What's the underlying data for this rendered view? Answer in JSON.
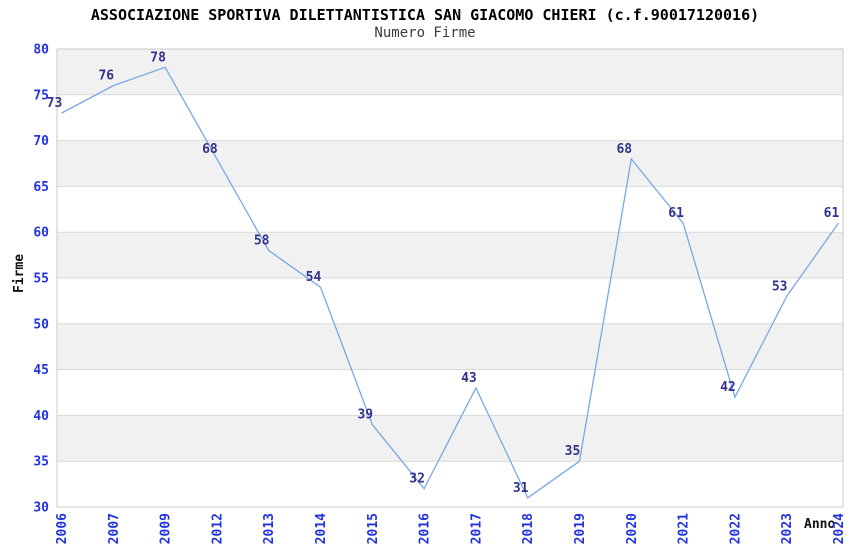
{
  "title": "ASSOCIAZIONE SPORTIVA DILETTANTISTICA SAN GIACOMO CHIERI (c.f.90017120016)",
  "subtitle": "Numero Firme",
  "chart_data": {
    "type": "line",
    "title": "Numero Firme",
    "categories": [
      "2006",
      "2007",
      "2009",
      "2012",
      "2013",
      "2014",
      "2015",
      "2016",
      "2017",
      "2018",
      "2019",
      "2020",
      "2021",
      "2022",
      "2023",
      "2024"
    ],
    "values": [
      73,
      76,
      78,
      68,
      58,
      54,
      39,
      32,
      43,
      31,
      35,
      68,
      61,
      42,
      53,
      61
    ],
    "xlabel": "Anno",
    "ylabel": "Firme",
    "ylim": [
      30,
      80
    ],
    "ytick_step": 5,
    "grid": true,
    "bands_alternating": true,
    "legend_position": "none",
    "colors": {
      "line": "#79a8e6",
      "tick_label": "#2233dd",
      "point_label": "#32328c",
      "band": "#f1f1f1",
      "gridline": "#d9d9d9",
      "plot_border": "#c9c9c9",
      "title": "#000000",
      "subtitle": "#3c3c3c"
    }
  }
}
